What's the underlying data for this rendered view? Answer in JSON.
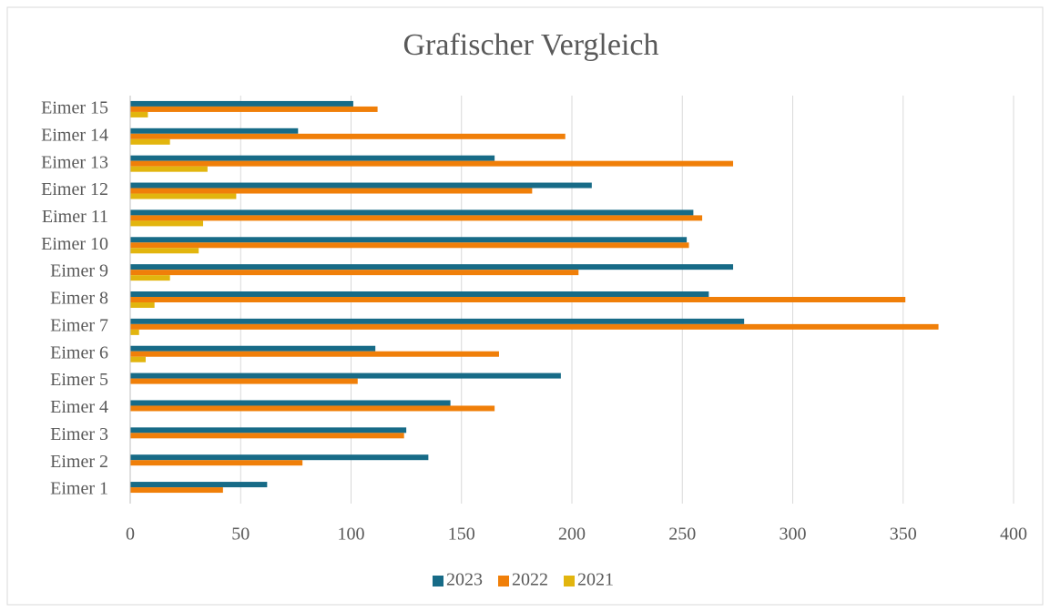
{
  "chart_data": {
    "type": "barh",
    "title": "Grafischer Vergleich",
    "categories": [
      "Eimer 1",
      "Eimer 2",
      "Eimer 3",
      "Eimer 4",
      "Eimer 5",
      "Eimer 6",
      "Eimer 7",
      "Eimer 8",
      "Eimer 9",
      "Eimer 10",
      "Eimer 11",
      "Eimer 12",
      "Eimer 13",
      "Eimer 14",
      "Eimer 15"
    ],
    "series": [
      {
        "name": "2023",
        "color": "#176b87",
        "values": [
          62,
          135,
          125,
          145,
          195,
          111,
          278,
          262,
          273,
          252,
          255,
          209,
          165,
          76,
          101
        ]
      },
      {
        "name": "2022",
        "color": "#f07f09",
        "values": [
          42,
          78,
          124,
          165,
          103,
          167,
          366,
          351,
          203,
          253,
          259,
          182,
          273,
          197,
          112
        ]
      },
      {
        "name": "2021",
        "color": "#e2b50e",
        "values": [
          0,
          0,
          0,
          0,
          0,
          7,
          4,
          11,
          18,
          31,
          33,
          48,
          35,
          18,
          8
        ]
      }
    ],
    "xlim": [
      0,
      400
    ],
    "xticks": [
      0,
      50,
      100,
      150,
      200,
      250,
      300,
      350,
      400
    ],
    "grid": true,
    "legend": "bottom"
  }
}
